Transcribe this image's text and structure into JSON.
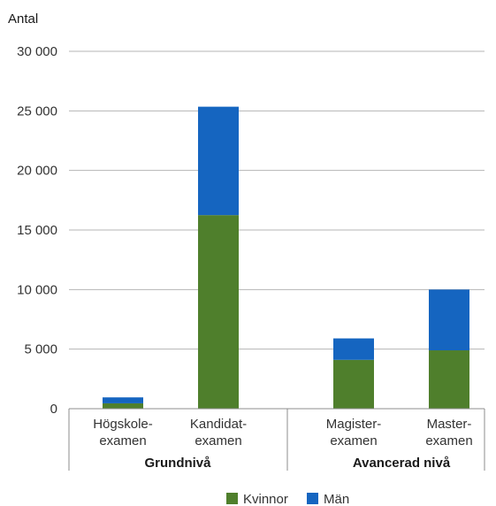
{
  "chart_data": {
    "type": "bar",
    "stacked": true,
    "ylabel": "Antal",
    "ylim": [
      0,
      30000
    ],
    "yticks": [
      0,
      5000,
      10000,
      15000,
      20000,
      25000,
      30000
    ],
    "ytick_labels": [
      "0",
      "5 000",
      "10 000",
      "15 000",
      "20 000",
      "25 000",
      "30 000"
    ],
    "grid": true,
    "legend_position": "bottom",
    "categories": [
      {
        "line1": "Högskole-",
        "line2": "examen",
        "group": 0
      },
      {
        "line1": "Kandidat-",
        "line2": "examen",
        "group": 0
      },
      {
        "line1": "Magister-",
        "line2": "examen",
        "group": 1
      },
      {
        "line1": "Master-",
        "line2": "examen",
        "group": 1
      }
    ],
    "groups": [
      "Grundnivå",
      "Avancerad nivå"
    ],
    "series": [
      {
        "name": "Kvinnor",
        "color": "#4f7f2c",
        "values": [
          450,
          16250,
          4100,
          4900
        ]
      },
      {
        "name": "Män",
        "color": "#1565c0",
        "values": [
          500,
          9100,
          1800,
          5100
        ]
      }
    ]
  }
}
